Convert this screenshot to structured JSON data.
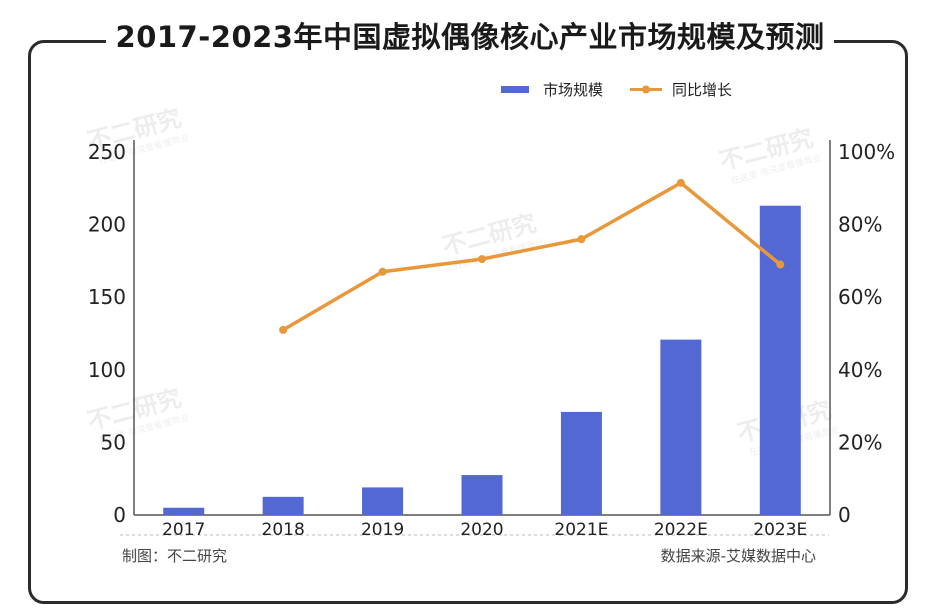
{
  "title": "2017-2023年中国虚拟偶像核心产业市场规模及预测",
  "footer": {
    "left": "制图：不二研究",
    "right": "数据来源-艾媒数据中心"
  },
  "watermark": {
    "main": "不二研究",
    "sub": "在这里 用深度看懂商业"
  },
  "colors": {
    "bar": "#5468d4",
    "line": "#e8973a"
  },
  "chart_data": {
    "type": "bar",
    "categories": [
      "2017",
      "2018",
      "2019",
      "2020",
      "2021E",
      "2022E",
      "2023E"
    ],
    "series": [
      {
        "name": "市场规模",
        "type": "bar",
        "axis": "left",
        "values": [
          5,
          12.5,
          19,
          27.5,
          71,
          120.8,
          213
        ]
      },
      {
        "name": "同比增长",
        "type": "line",
        "axis": "right",
        "unit": "%",
        "values": [
          null,
          51,
          67,
          70.5,
          76,
          91.5,
          69
        ]
      }
    ],
    "y_left": {
      "min": 0,
      "max": 250,
      "ticks": [
        0,
        50,
        100,
        150,
        200,
        250
      ]
    },
    "y_right": {
      "min": 0,
      "max": 100,
      "ticks": [
        "0",
        "20%",
        "40%",
        "60%",
        "80%",
        "100%"
      ]
    },
    "legend": "top-right",
    "grid": false
  }
}
